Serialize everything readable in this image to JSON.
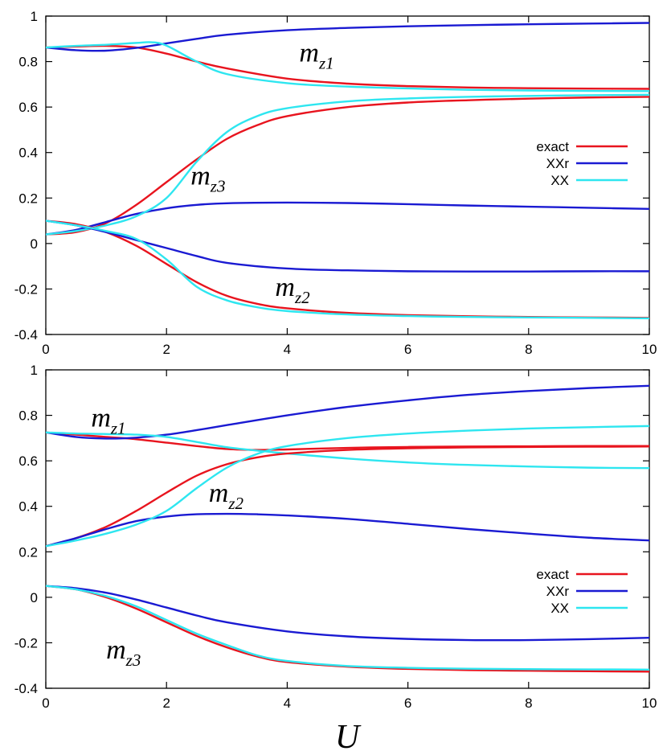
{
  "colors": {
    "exact": "#e8141e",
    "XXr": "#1a1ad2",
    "XX": "#2ee6f0"
  },
  "chart_data": [
    {
      "type": "line",
      "title": "",
      "xlabel": "",
      "ylabel": "",
      "xlim": [
        0,
        10
      ],
      "ylim": [
        -0.4,
        1
      ],
      "xticks": [
        0,
        2,
        4,
        6,
        8,
        10
      ],
      "yticks": [
        -0.4,
        -0.2,
        0,
        0.2,
        0.4,
        0.6,
        0.8,
        1
      ],
      "xtick_labels": [
        "0",
        "2",
        "4",
        "6",
        "8",
        "10"
      ],
      "ytick_labels": [
        "-0.4",
        "-0.2",
        "0",
        "0.2",
        "0.4",
        "0.6",
        "0.8",
        "1"
      ],
      "legend": {
        "position": "right",
        "entries": [
          "exact",
          "XXr",
          "XX"
        ]
      },
      "annotations": [
        {
          "label": "m",
          "sub": "z1",
          "x": 4.2,
          "y": 0.8
        },
        {
          "label": "m",
          "sub": "z3",
          "x": 2.4,
          "y": 0.26
        },
        {
          "label": "m",
          "sub": "z2",
          "x": 3.8,
          "y": -0.23
        }
      ],
      "series": [
        {
          "name": "exact",
          "color_key": "exact",
          "x": [
            0,
            0.5,
            1,
            1.5,
            2,
            2.5,
            3,
            4,
            5,
            6,
            7,
            8,
            9,
            10
          ],
          "y": [
            0.862,
            0.866,
            0.869,
            0.862,
            0.835,
            0.8,
            0.77,
            0.725,
            0.703,
            0.692,
            0.686,
            0.683,
            0.681,
            0.68
          ]
        },
        {
          "name": "XXr",
          "color_key": "XXr",
          "x": [
            0,
            0.5,
            1,
            1.5,
            2,
            2.5,
            3,
            4,
            5,
            6,
            7,
            8,
            9,
            10
          ],
          "y": [
            0.862,
            0.85,
            0.848,
            0.86,
            0.88,
            0.9,
            0.918,
            0.938,
            0.948,
            0.955,
            0.96,
            0.964,
            0.967,
            0.97
          ]
        },
        {
          "name": "XX",
          "color_key": "XX",
          "x": [
            0,
            0.5,
            1,
            1.5,
            1.75,
            2,
            2.5,
            3,
            4,
            5,
            6,
            7,
            8,
            9,
            10
          ],
          "y": [
            0.862,
            0.869,
            0.874,
            0.882,
            0.885,
            0.87,
            0.8,
            0.745,
            0.705,
            0.69,
            0.682,
            0.676,
            0.673,
            0.671,
            0.67
          ]
        },
        {
          "name": "exact",
          "color_key": "exact",
          "x": [
            0,
            0.5,
            1,
            1.5,
            2,
            2.5,
            3,
            3.5,
            4,
            5,
            6,
            7,
            8,
            9,
            10
          ],
          "y": [
            0.04,
            0.05,
            0.09,
            0.17,
            0.27,
            0.37,
            0.46,
            0.52,
            0.56,
            0.6,
            0.62,
            0.63,
            0.637,
            0.642,
            0.645
          ]
        },
        {
          "name": "XXr",
          "color_key": "XXr",
          "x": [
            0,
            0.5,
            1,
            1.5,
            2,
            2.5,
            3,
            4,
            5,
            6,
            7,
            8,
            9,
            10
          ],
          "y": [
            0.04,
            0.06,
            0.095,
            0.13,
            0.155,
            0.17,
            0.177,
            0.18,
            0.178,
            0.173,
            0.167,
            0.162,
            0.157,
            0.152
          ]
        },
        {
          "name": "XX",
          "color_key": "XX",
          "x": [
            0,
            0.5,
            1,
            1.5,
            2,
            2.5,
            3,
            3.5,
            4,
            5,
            6,
            7,
            8,
            9,
            10
          ],
          "y": [
            0.04,
            0.055,
            0.08,
            0.12,
            0.2,
            0.36,
            0.49,
            0.56,
            0.595,
            0.625,
            0.638,
            0.645,
            0.649,
            0.652,
            0.654
          ]
        },
        {
          "name": "exact",
          "color_key": "exact",
          "x": [
            0,
            0.5,
            1,
            1.5,
            2,
            2.5,
            3,
            3.5,
            4,
            5,
            6,
            7,
            8,
            9,
            10
          ],
          "y": [
            0.1,
            0.085,
            0.05,
            -0.01,
            -0.09,
            -0.17,
            -0.23,
            -0.265,
            -0.285,
            -0.305,
            -0.315,
            -0.32,
            -0.323,
            -0.325,
            -0.327
          ]
        },
        {
          "name": "XXr",
          "color_key": "XXr",
          "x": [
            0,
            0.5,
            1,
            1.5,
            2,
            2.5,
            3,
            4,
            5,
            6,
            7,
            8,
            9,
            10
          ],
          "y": [
            0.1,
            0.08,
            0.05,
            0.015,
            -0.02,
            -0.055,
            -0.085,
            -0.11,
            -0.118,
            -0.122,
            -0.123,
            -0.123,
            -0.122,
            -0.122
          ]
        },
        {
          "name": "XX",
          "color_key": "XX",
          "x": [
            0,
            0.5,
            1,
            1.5,
            2,
            2.5,
            3,
            3.5,
            4,
            5,
            6,
            7,
            8,
            9,
            10
          ],
          "y": [
            0.1,
            0.08,
            0.055,
            0.02,
            -0.07,
            -0.19,
            -0.25,
            -0.28,
            -0.297,
            -0.312,
            -0.319,
            -0.323,
            -0.325,
            -0.327,
            -0.329
          ]
        }
      ]
    },
    {
      "type": "line",
      "title": "",
      "xlabel": "U",
      "ylabel": "",
      "xlim": [
        0,
        10
      ],
      "ylim": [
        -0.4,
        1
      ],
      "xticks": [
        0,
        2,
        4,
        6,
        8,
        10
      ],
      "yticks": [
        -0.4,
        -0.2,
        0,
        0.2,
        0.4,
        0.6,
        0.8,
        1
      ],
      "xtick_labels": [
        "0",
        "2",
        "4",
        "6",
        "8",
        "10"
      ],
      "ytick_labels": [
        "-0.4",
        "-0.2",
        "0",
        "0.2",
        "0.4",
        "0.6",
        "0.8",
        "1"
      ],
      "legend": {
        "position": "right",
        "entries": [
          "exact",
          "XXr",
          "XX"
        ]
      },
      "annotations": [
        {
          "label": "m",
          "sub": "z1",
          "x": 0.75,
          "y": 0.75
        },
        {
          "label": "m",
          "sub": "z2",
          "x": 2.7,
          "y": 0.42
        },
        {
          "label": "m",
          "sub": "z3",
          "x": 1.0,
          "y": -0.27
        }
      ],
      "series": [
        {
          "name": "exact",
          "color_key": "exact",
          "x": [
            0,
            0.5,
            1,
            1.5,
            2,
            2.5,
            3,
            3.5,
            4,
            5,
            6,
            7,
            8,
            9,
            10
          ],
          "y": [
            0.725,
            0.715,
            0.705,
            0.695,
            0.68,
            0.665,
            0.652,
            0.648,
            0.65,
            0.657,
            0.661,
            0.663,
            0.664,
            0.665,
            0.665
          ]
        },
        {
          "name": "XXr",
          "color_key": "XXr",
          "x": [
            0,
            0.5,
            1,
            1.5,
            2,
            2.5,
            3,
            4,
            5,
            6,
            7,
            8,
            9,
            10
          ],
          "y": [
            0.725,
            0.705,
            0.698,
            0.702,
            0.715,
            0.735,
            0.757,
            0.8,
            0.837,
            0.866,
            0.89,
            0.907,
            0.92,
            0.93
          ]
        },
        {
          "name": "XX",
          "color_key": "XX",
          "x": [
            0,
            0.5,
            1,
            1.5,
            2,
            2.5,
            3,
            3.5,
            4,
            5,
            6,
            7,
            8,
            9,
            10
          ],
          "y": [
            0.725,
            0.72,
            0.718,
            0.715,
            0.705,
            0.683,
            0.66,
            0.645,
            0.632,
            0.61,
            0.593,
            0.582,
            0.575,
            0.57,
            0.568
          ]
        },
        {
          "name": "exact",
          "color_key": "exact",
          "x": [
            0,
            0.5,
            1,
            1.5,
            2,
            2.5,
            3,
            3.5,
            4,
            5,
            6,
            7,
            8,
            9,
            10
          ],
          "y": [
            0.225,
            0.26,
            0.31,
            0.38,
            0.46,
            0.535,
            0.585,
            0.615,
            0.632,
            0.648,
            0.655,
            0.659,
            0.661,
            0.662,
            0.663
          ]
        },
        {
          "name": "XXr",
          "color_key": "XXr",
          "x": [
            0,
            0.5,
            1,
            1.5,
            2,
            2.5,
            3,
            3.5,
            4,
            5,
            6,
            7,
            8,
            9,
            10
          ],
          "y": [
            0.225,
            0.26,
            0.3,
            0.335,
            0.355,
            0.365,
            0.367,
            0.365,
            0.36,
            0.345,
            0.323,
            0.3,
            0.28,
            0.262,
            0.25
          ]
        },
        {
          "name": "XX",
          "color_key": "XX",
          "x": [
            0,
            0.5,
            1,
            1.5,
            2,
            2.5,
            3,
            3.5,
            4,
            5,
            6,
            7,
            8,
            9,
            10
          ],
          "y": [
            0.225,
            0.25,
            0.28,
            0.32,
            0.38,
            0.48,
            0.57,
            0.63,
            0.665,
            0.7,
            0.72,
            0.733,
            0.742,
            0.748,
            0.753
          ]
        },
        {
          "name": "exact",
          "color_key": "exact",
          "x": [
            0,
            0.5,
            1,
            1.5,
            2,
            2.5,
            3,
            3.5,
            4,
            5,
            6,
            7,
            8,
            9,
            10
          ],
          "y": [
            0.05,
            0.035,
            0.0,
            -0.05,
            -0.11,
            -0.17,
            -0.22,
            -0.26,
            -0.285,
            -0.305,
            -0.315,
            -0.32,
            -0.323,
            -0.325,
            -0.327
          ]
        },
        {
          "name": "XXr",
          "color_key": "XXr",
          "x": [
            0,
            0.5,
            1,
            1.5,
            2,
            2.5,
            3,
            4,
            5,
            6,
            7,
            8,
            9,
            10
          ],
          "y": [
            0.05,
            0.04,
            0.02,
            -0.01,
            -0.045,
            -0.08,
            -0.11,
            -0.15,
            -0.172,
            -0.183,
            -0.188,
            -0.188,
            -0.184,
            -0.178
          ]
        },
        {
          "name": "XX",
          "color_key": "XX",
          "x": [
            0,
            0.5,
            1,
            1.5,
            2,
            2.5,
            3,
            3.5,
            4,
            5,
            6,
            7,
            8,
            9,
            10
          ],
          "y": [
            0.05,
            0.035,
            0.005,
            -0.04,
            -0.1,
            -0.16,
            -0.21,
            -0.255,
            -0.28,
            -0.302,
            -0.31,
            -0.314,
            -0.316,
            -0.317,
            -0.318
          ]
        }
      ]
    }
  ]
}
